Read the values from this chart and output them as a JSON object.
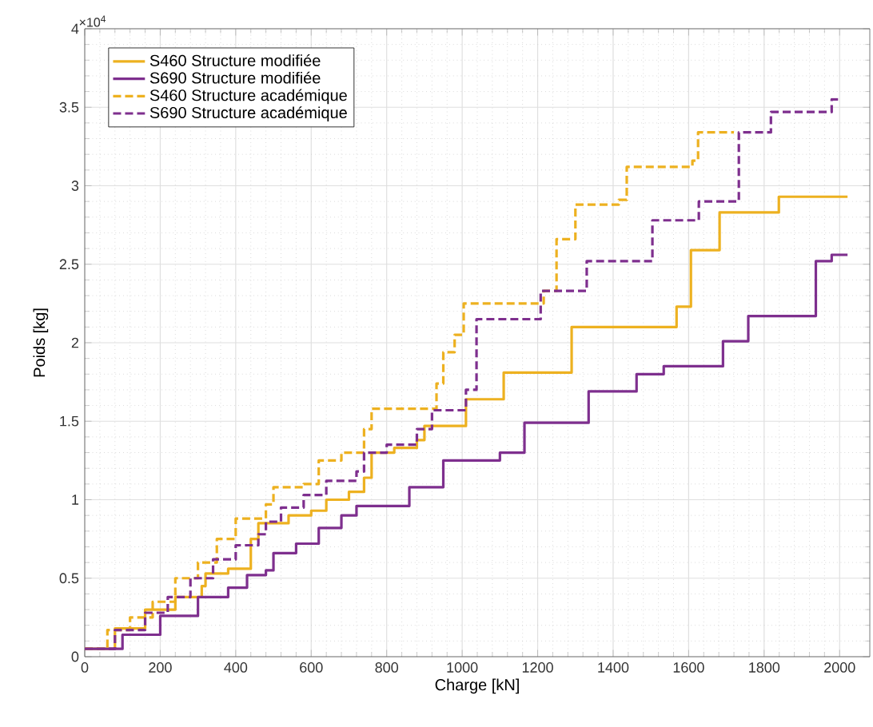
{
  "chart_data": {
    "type": "step",
    "xlabel": "Charge [kN]",
    "ylabel": "Poids [kg]",
    "annotations": [
      "×10$^{4}$"
    ],
    "xlim": [
      0,
      2080
    ],
    "ylim": [
      0,
      4
    ],
    "xticks": [
      0,
      200,
      400,
      600,
      800,
      1000,
      1200,
      1400,
      1600,
      1800,
      2000
    ],
    "yticks": [
      0,
      0.5,
      1,
      1.5,
      2,
      2.5,
      3,
      3.5,
      4
    ],
    "grid": true,
    "legend": "top left",
    "series": [
      {
        "name": "S460 Structure modifiée",
        "color": "#edb120",
        "line_style": "solid",
        "x": [
          0,
          80,
          160,
          240,
          310,
          320,
          380,
          440,
          460,
          540,
          600,
          640,
          700,
          740,
          760,
          820,
          880,
          900,
          1010,
          1110,
          1290,
          1568,
          1606,
          1682,
          1839,
          2021
        ],
        "values": [
          0.05,
          0.18,
          0.3,
          0.38,
          0.45,
          0.53,
          0.56,
          0.75,
          0.85,
          0.9,
          0.93,
          1.0,
          1.05,
          1.14,
          1.3,
          1.33,
          1.38,
          1.47,
          1.64,
          1.81,
          2.1,
          2.23,
          2.59,
          2.83,
          2.93,
          2.93
        ]
      },
      {
        "name": "S690 Structure modifiée",
        "color": "#7e2f8e",
        "line_style": "solid",
        "x": [
          0,
          100,
          200,
          300,
          380,
          430,
          480,
          500,
          560,
          620,
          680,
          720,
          860,
          950,
          1100,
          1165,
          1335,
          1462,
          1534,
          1691,
          1758,
          1937,
          1979,
          2021
        ],
        "values": [
          0.05,
          0.14,
          0.26,
          0.38,
          0.44,
          0.52,
          0.55,
          0.66,
          0.72,
          0.82,
          0.9,
          0.96,
          1.08,
          1.25,
          1.3,
          1.49,
          1.69,
          1.8,
          1.85,
          2.01,
          2.17,
          2.52,
          2.56,
          2.56
        ]
      },
      {
        "name": "S460 Structure académique",
        "color": "#edb120",
        "line_style": "dashed",
        "x": [
          0,
          60,
          120,
          180,
          240,
          300,
          350,
          400,
          480,
          500,
          580,
          620,
          680,
          740,
          760,
          932,
          950,
          980,
          1004,
          1216,
          1250,
          1300,
          1415,
          1436,
          1610,
          1625,
          1720
        ],
        "values": [
          0.05,
          0.17,
          0.25,
          0.35,
          0.5,
          0.6,
          0.75,
          0.88,
          0.97,
          1.08,
          1.1,
          1.25,
          1.3,
          1.45,
          1.58,
          1.74,
          1.94,
          2.05,
          2.25,
          2.33,
          2.66,
          2.88,
          2.91,
          3.12,
          3.16,
          3.34,
          3.34
        ]
      },
      {
        "name": "S690 Structure académique",
        "color": "#7e2f8e",
        "line_style": "dashed",
        "x": [
          0,
          80,
          160,
          220,
          280,
          340,
          400,
          460,
          480,
          520,
          580,
          640,
          720,
          740,
          800,
          880,
          920,
          1010,
          1038,
          1208,
          1330,
          1504,
          1627,
          1733,
          1818,
          1979,
          2000
        ],
        "values": [
          0.05,
          0.17,
          0.28,
          0.38,
          0.5,
          0.62,
          0.71,
          0.78,
          0.86,
          0.95,
          1.03,
          1.12,
          1.18,
          1.3,
          1.35,
          1.45,
          1.57,
          1.7,
          2.15,
          2.33,
          2.52,
          2.78,
          2.9,
          3.34,
          3.47,
          3.55,
          3.55
        ]
      }
    ]
  }
}
